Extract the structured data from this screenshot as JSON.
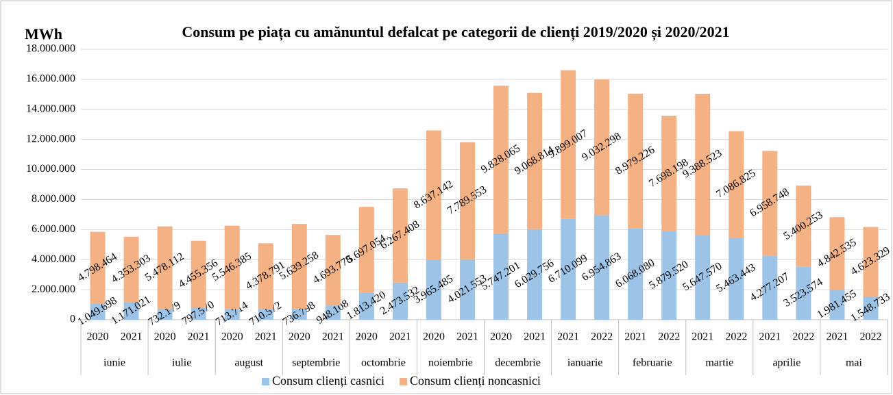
{
  "chart_data": {
    "type": "stacked_bar",
    "title": "Consum pe piața cu amănuntul defalcat pe categorii de clienți 2019/2020 și 2020/2021",
    "y_label": "MWh",
    "categories": [
      "2020",
      "2021",
      "2020",
      "2021",
      "2020",
      "2021",
      "2020",
      "2021",
      "2020",
      "2021",
      "2020",
      "2021",
      "2020",
      "2021",
      "2021",
      "2022",
      "2021",
      "2022",
      "2021",
      "2022",
      "2021",
      "2022",
      "2021",
      "2022"
    ],
    "groups": [
      "iunie",
      "iulie",
      "august",
      "septembrie",
      "octombrie",
      "noiembrie",
      "decembrie",
      "ianuarie",
      "februarie",
      "martie",
      "aprilie",
      "mai"
    ],
    "series": [
      {
        "name": "Consum clienți casnici",
        "color": "#9dc3e6",
        "values": [
          1049698,
          1171021,
          732179,
          797570,
          713714,
          710572,
          736798,
          948108,
          1813420,
          2473532,
          3965485,
          4021553,
          5747201,
          6029756,
          6710099,
          6954863,
          6068080,
          5879520,
          5647570,
          5463443,
          4277207,
          3523574,
          1981455,
          1548733
        ],
        "value_labels": [
          "1.049.698",
          "1.171.021",
          "732.179",
          "797.570",
          "713.714",
          "710.572",
          "736.798",
          "948.108",
          "1.813.420",
          "2.473.532",
          "3.965.485",
          "4.021.553",
          "5.747.201",
          "6.029.756",
          "6.710.099",
          "6.954.863",
          "6.068.080",
          "5.879.520",
          "5.647.570",
          "5.463.443",
          "4.277.207",
          "3.523.574",
          "1.981.455",
          "1.548.733"
        ]
      },
      {
        "name": "Consum clienți noncasnici",
        "color": "#f4b183",
        "values": [
          4798464,
          4353303,
          5478112,
          4455356,
          5546385,
          4378791,
          5639258,
          4693778,
          5697054,
          6267408,
          8637142,
          7789553,
          9828065,
          9068814,
          9899007,
          9032298,
          8979226,
          7698198,
          9388523,
          7086825,
          6958748,
          5400253,
          4842535,
          4623329
        ],
        "value_labels": [
          "4.798.464",
          "4.353.303",
          "5.478.112",
          "4.455.356",
          "5.546.385",
          "4.378.791",
          "5.639.258",
          "4.693.778",
          "5.697.054",
          "6.267.408",
          "8.637.142",
          "7.789.553",
          "9.828.065",
          "9.068.814",
          "9.899.007",
          "9.032.298",
          "8.979.226",
          "7.698.198",
          "9.388.523",
          "7.086.825",
          "6.958.748",
          "5.400.253",
          "4.842.535",
          "4.623.329"
        ]
      }
    ],
    "ylim": [
      0,
      18000000
    ],
    "yticks": [
      0,
      {
        "value": 2000000,
        "label": "2.000.000"
      },
      {
        "value": 4000000,
        "label": "4.000.000"
      },
      {
        "value": 6000000,
        "label": "6.000.000"
      },
      {
        "value": 8000000,
        "label": "8.000.000"
      },
      {
        "value": 10000000,
        "label": "10.000.000"
      },
      {
        "value": 12000000,
        "label": "12.000.000"
      },
      {
        "value": 14000000,
        "label": "14.000.000"
      },
      {
        "value": 16000000,
        "label": "16.000.000"
      },
      {
        "value": 18000000,
        "label": "18.000.000"
      }
    ],
    "grid": true,
    "legend": "bottom"
  }
}
